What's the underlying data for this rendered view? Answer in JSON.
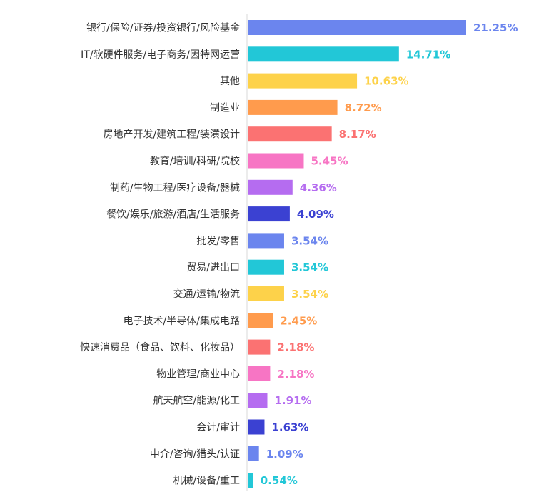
{
  "chart_data": {
    "type": "bar",
    "orientation": "horizontal",
    "categories": [
      "银行/保险/证券/投资银行/风险基金",
      "IT/软硬件服务/电子商务/因特网运营",
      "其他",
      "制造业",
      "房地产开发/建筑工程/装潢设计",
      "教育/培训/科研/院校",
      "制药/生物工程/医疗设备/器械",
      "餐饮/娱乐/旅游/酒店/生活服务",
      "批发/零售",
      "贸易/进出口",
      "交通/运输/物流",
      "电子技术/半导体/集成电路",
      "快速消费品（食品、饮料、化妆品）",
      "物业管理/商业中心",
      "航天航空/能源/化工",
      "会计/审计",
      "中介/咨询/猎头/认证",
      "机械/设备/重工"
    ],
    "values": [
      21.25,
      14.71,
      10.63,
      8.72,
      8.17,
      5.45,
      4.36,
      4.09,
      3.54,
      3.54,
      3.54,
      2.45,
      2.18,
      2.18,
      1.91,
      1.63,
      1.09,
      0.54
    ],
    "value_labels": [
      "21.25%",
      "14.71%",
      "10.63%",
      "8.72%",
      "8.17%",
      "5.45%",
      "4.36%",
      "4.09%",
      "3.54%",
      "3.54%",
      "3.54%",
      "2.45%",
      "2.18%",
      "2.18%",
      "1.91%",
      "1.63%",
      "1.09%",
      "0.54%"
    ],
    "colors": [
      "#6b85ee",
      "#22c7d7",
      "#fdd24a",
      "#ff9b4d",
      "#fb7272",
      "#f775c4",
      "#b56cf0",
      "#3b41d2",
      "#6b85ee",
      "#22c7d7",
      "#fdd24a",
      "#ff9b4d",
      "#fb7272",
      "#f775c4",
      "#b56cf0",
      "#3b41d2",
      "#6b85ee",
      "#22c7d7"
    ],
    "title": "",
    "xlabel": "",
    "ylabel": "",
    "grid": false,
    "legend": "none"
  }
}
